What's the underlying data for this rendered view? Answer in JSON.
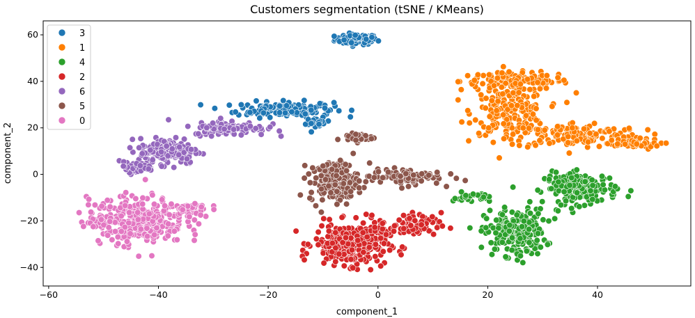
{
  "chart_data": {
    "type": "scatter",
    "title": "Customers segmentation (tSNE / KMeans)",
    "xlabel": "component_1",
    "ylabel": "component_2",
    "xlim": [
      -61,
      57
    ],
    "ylim": [
      -48,
      66
    ],
    "xticks": [
      -60,
      -40,
      -20,
      0,
      20,
      40
    ],
    "yticks": [
      -40,
      -20,
      0,
      20,
      40,
      60
    ],
    "xtick_labels": [
      "−60",
      "−40",
      "−20",
      "0",
      "20",
      "40"
    ],
    "ytick_labels": [
      "−40",
      "−20",
      "0",
      "20",
      "40",
      "60"
    ],
    "grid": false,
    "legend_position": "top-left",
    "series": [
      {
        "name": "3",
        "color": "#1f77b4",
        "regions": [
          {
            "center": [
              -4,
              58
            ],
            "spread": [
              3.5,
              2
            ],
            "n": 90
          },
          {
            "center": [
              -17,
              28
            ],
            "spread": [
              8,
              3
            ],
            "n": 160
          },
          {
            "center": [
              -11,
              22
            ],
            "spread": [
              2,
              2
            ],
            "n": 20
          }
        ]
      },
      {
        "name": "1",
        "color": "#ff7f00",
        "regions": [
          {
            "center": [
              25,
              40
            ],
            "spread": [
              9,
              3.5
            ],
            "n": 140
          },
          {
            "center": [
              24,
              27
            ],
            "spread": [
              6,
              9
            ],
            "n": 180
          },
          {
            "center": [
              36,
              17
            ],
            "spread": [
              11,
              5
            ],
            "n": 150
          },
          {
            "center": [
              46,
              13
            ],
            "spread": [
              5,
              2
            ],
            "n": 40
          }
        ]
      },
      {
        "name": "4",
        "color": "#2ca02c",
        "regions": [
          {
            "center": [
              25,
              -25
            ],
            "spread": [
              5,
              9
            ],
            "n": 220
          },
          {
            "center": [
              37,
              -6
            ],
            "spread": [
              6,
              6
            ],
            "n": 170
          },
          {
            "center": [
              17,
              -10
            ],
            "spread": [
              3,
              2
            ],
            "n": 30
          }
        ]
      },
      {
        "name": "2",
        "color": "#d62728",
        "regions": [
          {
            "center": [
              -5,
              -30
            ],
            "spread": [
              6,
              8
            ],
            "n": 330
          },
          {
            "center": [
              6,
              -22
            ],
            "spread": [
              5,
              5
            ],
            "n": 80
          }
        ]
      },
      {
        "name": "6",
        "color": "#9467bd",
        "regions": [
          {
            "center": [
              -38,
              10
            ],
            "spread": [
              5,
              5
            ],
            "n": 160
          },
          {
            "center": [
              -27,
              20
            ],
            "spread": [
              6,
              3
            ],
            "n": 110
          },
          {
            "center": [
              -44,
              3
            ],
            "spread": [
              3,
              2
            ],
            "n": 40
          }
        ]
      },
      {
        "name": "5",
        "color": "#8c564b",
        "regions": [
          {
            "center": [
              -8,
              -3
            ],
            "spread": [
              4,
              8
            ],
            "n": 190
          },
          {
            "center": [
              5,
              -1
            ],
            "spread": [
              6,
              3
            ],
            "n": 90
          },
          {
            "center": [
              -4,
              16
            ],
            "spread": [
              3,
              2
            ],
            "n": 30
          }
        ]
      },
      {
        "name": "0",
        "color": "#e377c2",
        "regions": [
          {
            "center": [
              -44,
              -20
            ],
            "spread": [
              8,
              9
            ],
            "n": 330
          },
          {
            "center": [
              -34,
              -15
            ],
            "spread": [
              3,
              3
            ],
            "n": 40
          }
        ]
      }
    ]
  }
}
